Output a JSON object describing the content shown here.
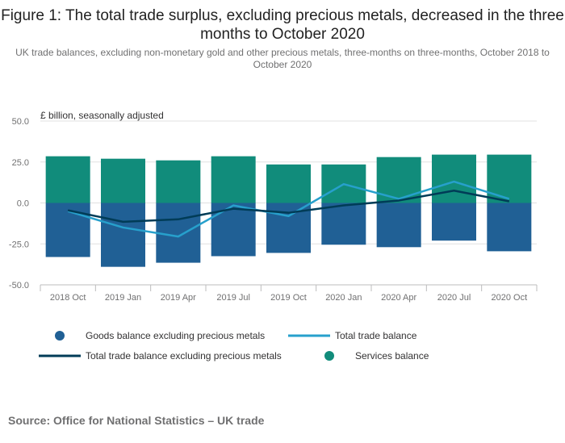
{
  "title": "Figure 1: The total trade surplus, excluding precious metals, decreased in the three months to October 2020",
  "subtitle": "UK trade balances, excluding non-monetary gold and other precious metals, three-months on three-months, October 2018 to October 2020",
  "source": "Source: Office for National Statistics – UK trade",
  "colors": {
    "goods": "#206095",
    "services": "#118C7B",
    "total": "#27A0CC",
    "total_excl": "#003C57",
    "grid": "#e0e0e0",
    "axis": "#bcbcbd"
  },
  "chart_data": {
    "type": "bar",
    "ylabel": "£ billion, seasonally adjusted",
    "ylim": [
      -50,
      50
    ],
    "yticks": [
      50,
      25,
      0,
      -25,
      -50
    ],
    "ytick_labels": [
      "50.0",
      "25.0",
      "0.0",
      "-25.0",
      "-50.0"
    ],
    "categories": [
      "2018 Oct",
      "2019 Jan",
      "2019 Apr",
      "2019 Jul",
      "2019 Oct",
      "2020 Jan",
      "2020 Apr",
      "2020 Jul",
      "2020 Oct"
    ],
    "legend_position": "bottom",
    "series": [
      {
        "name": "Goods balance excluding precious metals",
        "kind": "bar",
        "values": [
          -33.0,
          -39.0,
          -36.5,
          -32.5,
          -30.5,
          -25.5,
          -27.0,
          -23.0,
          -29.5
        ]
      },
      {
        "name": "Services balance",
        "kind": "bar",
        "values": [
          28.5,
          27.0,
          26.0,
          28.5,
          23.5,
          23.5,
          28.0,
          29.5,
          29.5
        ]
      },
      {
        "name": "Total trade balance",
        "kind": "line",
        "values": [
          -5.0,
          -15.0,
          -20.5,
          -1.5,
          -8.0,
          11.5,
          2.5,
          13.0,
          2.5
        ]
      },
      {
        "name": "Total trade balance excluding precious metals",
        "kind": "line",
        "values": [
          -4.5,
          -11.5,
          -10.0,
          -3.5,
          -6.0,
          -1.5,
          1.5,
          7.5,
          1.0
        ]
      }
    ]
  }
}
